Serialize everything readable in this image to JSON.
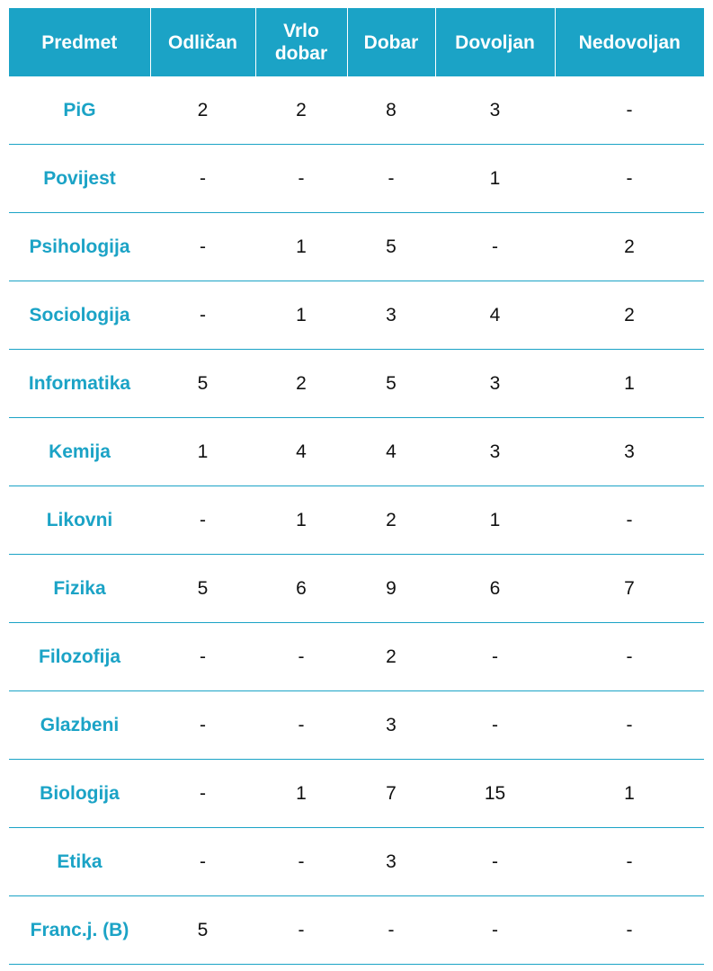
{
  "table": {
    "headers": [
      "Predmet",
      "Odličan",
      "Vrlo dobar",
      "Dobar",
      "Dovoljan",
      "Nedovoljan"
    ],
    "rows": [
      {
        "subject": "PiG",
        "values": [
          "2",
          "2",
          "8",
          "3",
          "-"
        ]
      },
      {
        "subject": "Povijest",
        "values": [
          "-",
          "-",
          "-",
          "1",
          "-"
        ]
      },
      {
        "subject": "Psihologija",
        "values": [
          "-",
          "1",
          "5",
          "-",
          "2"
        ]
      },
      {
        "subject": "Sociologija",
        "values": [
          "-",
          "1",
          "3",
          "4",
          "2"
        ]
      },
      {
        "subject": "Informatika",
        "values": [
          "5",
          "2",
          "5",
          "3",
          "1"
        ]
      },
      {
        "subject": "Kemija",
        "values": [
          "1",
          "4",
          "4",
          "3",
          "3"
        ]
      },
      {
        "subject": "Likovni",
        "values": [
          "-",
          "1",
          "2",
          "1",
          "-"
        ]
      },
      {
        "subject": "Fizika",
        "values": [
          "5",
          "6",
          "9",
          "6",
          "7"
        ]
      },
      {
        "subject": "Filozofija",
        "values": [
          "-",
          "-",
          "2",
          "-",
          "-"
        ]
      },
      {
        "subject": "Glazbeni",
        "values": [
          "-",
          "-",
          "3",
          "-",
          "-"
        ]
      },
      {
        "subject": "Biologija",
        "values": [
          "-",
          "1",
          "7",
          "15",
          "1"
        ]
      },
      {
        "subject": "Etika",
        "values": [
          "-",
          "-",
          "3",
          "-",
          "-"
        ]
      },
      {
        "subject": "Franc.j. (B)",
        "values": [
          "5",
          "-",
          "-",
          "-",
          "-"
        ]
      }
    ]
  },
  "colors": {
    "accent": "#1ba3c6",
    "header_text": "#ffffff",
    "cell_text": "#111111"
  }
}
